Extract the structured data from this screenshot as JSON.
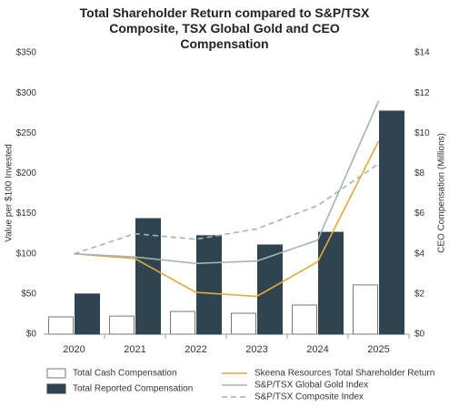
{
  "chart_data": {
    "type": "combo",
    "title": "Total Shareholder Return compared to S&P/TSX Composite, TSX Global Gold and CEO Compensation",
    "y_label": "Value per $100 Invested",
    "y2_label": "CEO Compensation (Millions)",
    "categories": [
      "2020",
      "2021",
      "2022",
      "2023",
      "2024",
      "2025"
    ],
    "ylim": [
      0,
      350
    ],
    "yticks": [
      {
        "value": 0,
        "label": "$0"
      },
      {
        "value": 50,
        "label": "$50"
      },
      {
        "value": 100,
        "label": "$100"
      },
      {
        "value": 150,
        "label": "$150"
      },
      {
        "value": 200,
        "label": "$200"
      },
      {
        "value": 250,
        "label": "$250"
      },
      {
        "value": 300,
        "label": "$300"
      },
      {
        "value": 350,
        "label": "$350"
      }
    ],
    "y2lim": [
      0,
      14
    ],
    "y2ticks": [
      {
        "value": 0,
        "label": "$0"
      },
      {
        "value": 2,
        "label": "$2"
      },
      {
        "value": 4,
        "label": "$4"
      },
      {
        "value": 6,
        "label": "$6"
      },
      {
        "value": 8,
        "label": "$8"
      },
      {
        "value": 10,
        "label": "$10"
      },
      {
        "value": 12,
        "label": "$12"
      },
      {
        "value": 14,
        "label": "$14"
      }
    ],
    "series": [
      {
        "name": "Total Cash Compensation",
        "type": "bar",
        "axis": "y2",
        "color": "#ffffff",
        "values": [
          0.86,
          0.9,
          1.13,
          1.04,
          1.45,
          2.45
        ]
      },
      {
        "name": "Total Reported Compensation",
        "type": "bar",
        "axis": "y2",
        "color": "#2f4350",
        "values": [
          2.0,
          5.75,
          4.9,
          4.44,
          5.07,
          11.1
        ]
      },
      {
        "name": "Skeena Resources Total Shareholder Return",
        "type": "line",
        "color": "#e2a93e",
        "values": [
          100,
          94,
          52,
          47,
          90,
          240
        ]
      },
      {
        "name": "S&P/TSX Global Gold Index",
        "type": "line",
        "color": "#a3b5b0",
        "values": [
          100,
          96,
          88,
          91,
          117,
          290
        ]
      },
      {
        "name": "S&P/TSX Composite Index",
        "type": "line",
        "color": "#a3b5b0",
        "dash": true,
        "values": [
          100,
          125,
          118,
          131,
          160,
          212
        ]
      }
    ]
  }
}
